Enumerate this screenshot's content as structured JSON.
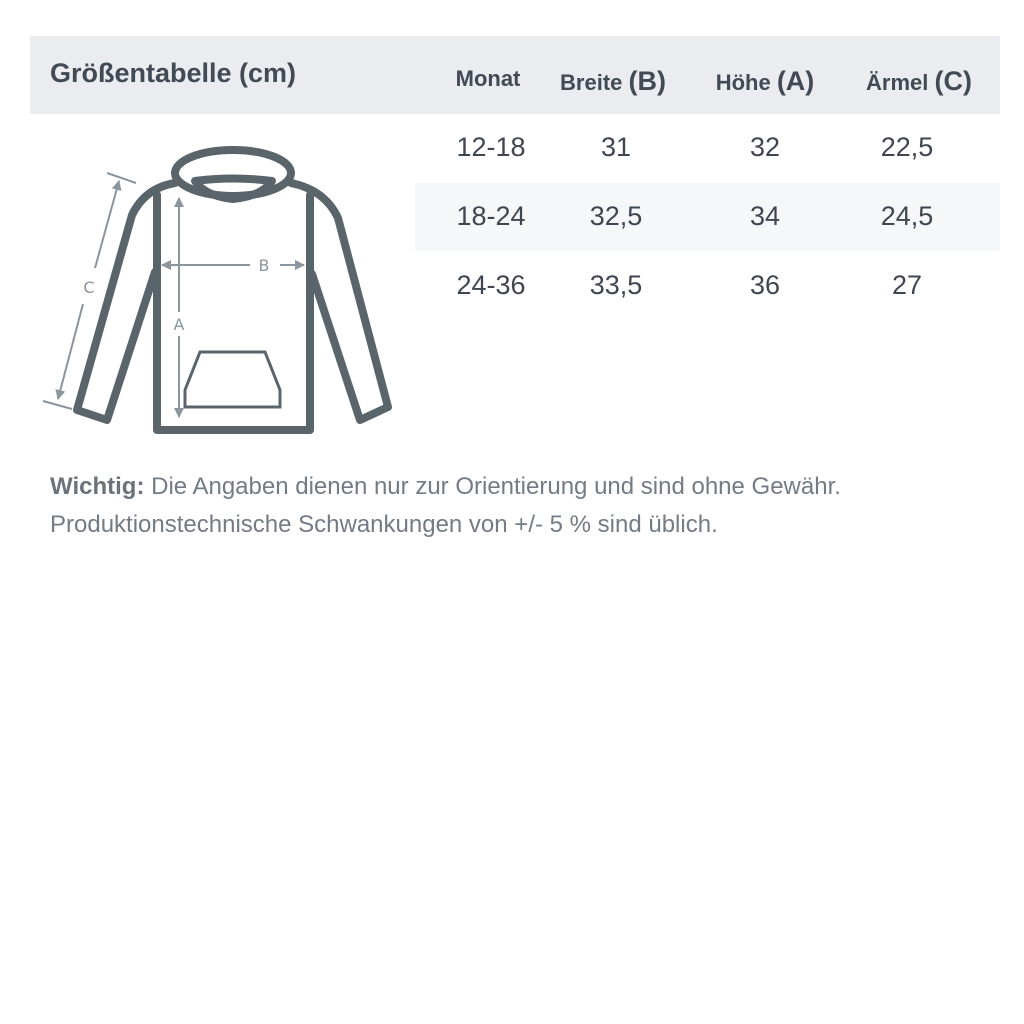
{
  "title": "Größentabelle (cm)",
  "columns": [
    {
      "label": "Monat",
      "letter": ""
    },
    {
      "label": "Breite",
      "letter": "(B)"
    },
    {
      "label": "Höhe",
      "letter": "(A)"
    },
    {
      "label": "Ärmel",
      "letter": "(C)"
    }
  ],
  "rows": [
    [
      "12-18",
      "31",
      "32",
      "22,5"
    ],
    [
      "18-24",
      "32,5",
      "34",
      "24,5"
    ],
    [
      "24-36",
      "33,5",
      "36",
      "27"
    ]
  ],
  "diagram": {
    "label_a": "A",
    "label_b": "B",
    "label_c": "C"
  },
  "note": {
    "bold": "Wichtig:",
    "line1": " Die Angaben dienen nur zur Orientierung und sind ohne Gewähr.",
    "line2": "Produktionstechnische Schwankungen von +/- 5 % sind üblich."
  },
  "colors": {
    "header_bg": "#ebecf0",
    "outline": "#59646b",
    "measure": "#8a959e"
  }
}
